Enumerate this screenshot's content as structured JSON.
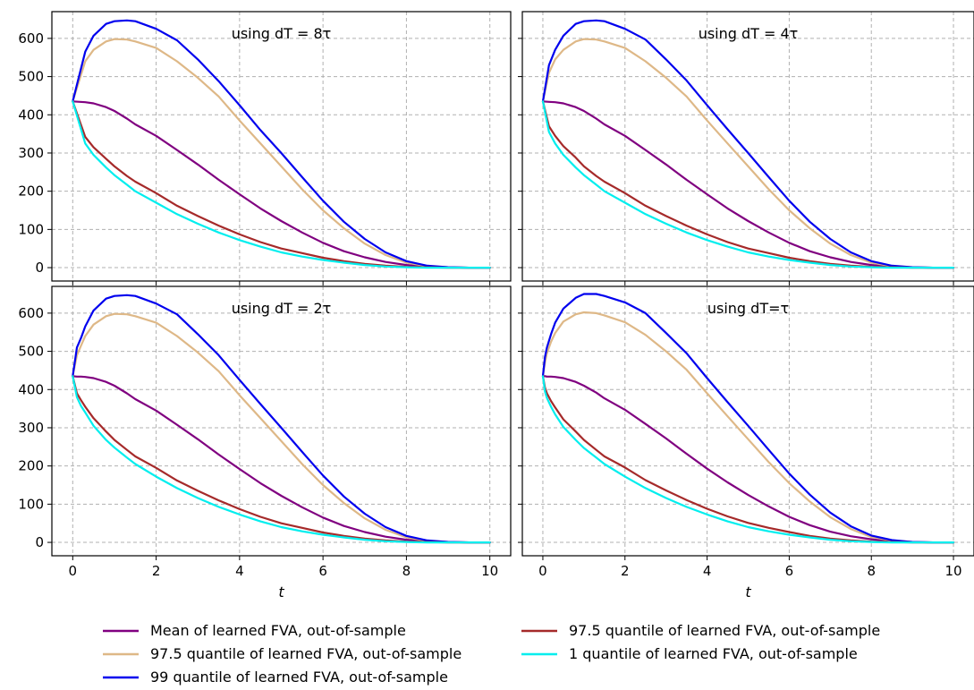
{
  "chart_data": {
    "type": "line",
    "layout": "2x2 grid, shared axes",
    "xlabel": "t",
    "xlim": [
      -0.5,
      10.5
    ],
    "ylim": [
      -35,
      670
    ],
    "x_ticks": [
      0,
      2,
      4,
      6,
      8,
      10
    ],
    "y_ticks": [
      0,
      100,
      200,
      300,
      400,
      500,
      600
    ],
    "grid": true,
    "legend_placement": "bottom-center, two columns",
    "series_styles": [
      {
        "key": "mean",
        "name": "Mean of learned FVA, out-of-sample",
        "color": "#800080"
      },
      {
        "key": "q975",
        "name": "97.5 quantile of learned FVA, out-of-sample",
        "color": "#deb887"
      },
      {
        "key": "q99",
        "name": "99 quantile of learned FVA, out-of-sample",
        "color": "#0000ee"
      },
      {
        "key": "q975b",
        "name": "97.5 quantile of learned FVA, out-of-sample",
        "color": "#a52a2a"
      },
      {
        "key": "q1",
        "name": "1 quantile of learned FVA, out-of-sample",
        "color": "#00eeee"
      }
    ],
    "legend_order": [
      "mean",
      "q975b",
      "q975",
      "q1",
      "q99"
    ],
    "panels": [
      {
        "title": "using dT = 8τ",
        "x": [
          0,
          0.3,
          0.5,
          0.8,
          1.0,
          1.3,
          1.5,
          2.0,
          2.5,
          3.0,
          3.5,
          4.0,
          4.5,
          5.0,
          5.5,
          6.0,
          6.5,
          7.0,
          7.5,
          8.0,
          8.5,
          9.0,
          9.5,
          10.0
        ],
        "series": [
          {
            "key": "mean",
            "values": [
              435,
              433,
              430,
              420,
              410,
              390,
              375,
              345,
              308,
              270,
              230,
              192,
              155,
              122,
              92,
              65,
              43,
              27,
              15,
              7,
              3,
              1,
              0,
              0
            ]
          },
          {
            "key": "q975",
            "values": [
              435,
              540,
              570,
              592,
              598,
              597,
              592,
              575,
              540,
              497,
              448,
              385,
              325,
              265,
              205,
              150,
              103,
              63,
              33,
              13,
              4,
              1,
              0,
              0
            ]
          },
          {
            "key": "q99",
            "values": [
              435,
              565,
              607,
              638,
              645,
              647,
              645,
              625,
              595,
              545,
              488,
              425,
              360,
              300,
              237,
              175,
              120,
              75,
              40,
              17,
              5,
              1,
              0,
              0
            ]
          },
          {
            "key": "q975b",
            "values": [
              435,
              342,
              315,
              285,
              265,
              240,
              225,
              195,
              162,
              135,
              110,
              87,
              67,
              50,
              38,
              26,
              17,
              10,
              5,
              2,
              1,
              0,
              0,
              0
            ]
          },
          {
            "key": "q1",
            "values": [
              435,
              325,
              295,
              262,
              242,
              217,
              200,
              170,
              140,
              115,
              92,
              72,
              55,
              40,
              29,
              20,
              13,
              7,
              3,
              1,
              0,
              0,
              0,
              0
            ]
          }
        ]
      },
      {
        "title": "using dT = 4τ",
        "x": [
          0,
          0.15,
          0.3,
          0.5,
          0.8,
          1.0,
          1.3,
          1.5,
          2.0,
          2.5,
          3.0,
          3.5,
          4.0,
          4.5,
          5.0,
          5.5,
          6.0,
          6.5,
          7.0,
          7.5,
          8.0,
          8.5,
          9.0,
          9.5,
          10.0
        ],
        "series": [
          {
            "key": "mean",
            "values": [
              435,
              434,
              433,
              430,
              420,
              410,
              390,
              375,
              345,
              308,
              270,
              230,
              192,
              155,
              122,
              92,
              65,
              43,
              27,
              15,
              7,
              3,
              1,
              0,
              0
            ]
          },
          {
            "key": "q975",
            "values": [
              435,
              510,
              545,
              570,
              592,
              598,
              597,
              592,
              575,
              540,
              497,
              448,
              385,
              325,
              265,
              205,
              150,
              103,
              63,
              33,
              13,
              4,
              1,
              0,
              0
            ]
          },
          {
            "key": "q99",
            "values": [
              435,
              530,
              570,
              607,
              638,
              645,
              647,
              645,
              625,
              597,
              545,
              490,
              425,
              362,
              300,
              237,
              175,
              120,
              75,
              40,
              17,
              5,
              1,
              0,
              0
            ]
          },
          {
            "key": "q975b",
            "values": [
              435,
              370,
              345,
              318,
              288,
              265,
              240,
              225,
              195,
              162,
              135,
              110,
              87,
              67,
              50,
              38,
              26,
              17,
              10,
              5,
              2,
              1,
              0,
              0,
              0
            ]
          },
          {
            "key": "q1",
            "values": [
              435,
              355,
              325,
              295,
              262,
              242,
              217,
              200,
              170,
              140,
              115,
              92,
              72,
              55,
              40,
              29,
              20,
              13,
              7,
              3,
              1,
              0,
              0,
              0,
              0
            ]
          }
        ]
      },
      {
        "title": "using dT = 2τ",
        "x": [
          0,
          0.1,
          0.2,
          0.3,
          0.5,
          0.8,
          1.0,
          1.3,
          1.5,
          2.0,
          2.5,
          3.0,
          3.5,
          4.0,
          4.5,
          5.0,
          5.5,
          6.0,
          6.5,
          7.0,
          7.5,
          8.0,
          8.5,
          9.0,
          9.5,
          10.0
        ],
        "series": [
          {
            "key": "mean",
            "values": [
              435,
              434,
              434,
              433,
              430,
              420,
              410,
              390,
              375,
              345,
              308,
              270,
              230,
              192,
              155,
              122,
              92,
              65,
              43,
              27,
              15,
              7,
              3,
              1,
              0,
              0
            ]
          },
          {
            "key": "q975",
            "values": [
              435,
              490,
              515,
              540,
              570,
              592,
              598,
              597,
              592,
              575,
              540,
              497,
              448,
              385,
              325,
              265,
              205,
              150,
              103,
              63,
              33,
              13,
              4,
              1,
              0,
              0
            ]
          },
          {
            "key": "q99",
            "values": [
              435,
              510,
              535,
              565,
              607,
              638,
              645,
              647,
              645,
              625,
              597,
              545,
              490,
              425,
              362,
              300,
              237,
              175,
              120,
              75,
              40,
              17,
              5,
              1,
              0,
              0
            ]
          },
          {
            "key": "q975b",
            "values": [
              435,
              390,
              372,
              355,
              325,
              290,
              268,
              242,
              225,
              195,
              162,
              135,
              110,
              87,
              67,
              50,
              38,
              26,
              17,
              10,
              5,
              2,
              1,
              0,
              0,
              0
            ]
          },
          {
            "key": "q1",
            "values": [
              435,
              380,
              357,
              340,
              305,
              268,
              248,
              222,
              205,
              172,
              142,
              116,
              93,
              73,
              55,
              40,
              29,
              20,
              13,
              7,
              3,
              1,
              0,
              0,
              0,
              0
            ]
          }
        ]
      },
      {
        "title": "using dT=τ",
        "x": [
          0,
          0.05,
          0.1,
          0.2,
          0.3,
          0.5,
          0.8,
          1.0,
          1.3,
          1.5,
          2.0,
          2.5,
          3.0,
          3.5,
          4.0,
          4.5,
          5.0,
          5.5,
          6.0,
          6.5,
          7.0,
          7.5,
          8.0,
          8.5,
          9.0,
          9.5,
          10.0
        ],
        "series": [
          {
            "key": "mean",
            "values": [
              435,
              435,
              434,
              434,
              433,
              430,
              420,
              410,
              392,
              377,
              347,
              310,
              272,
              232,
              193,
              157,
              124,
              94,
              67,
              45,
              28,
              16,
              8,
              3,
              1,
              0,
              0
            ]
          },
          {
            "key": "q975",
            "values": [
              435,
              470,
              495,
              525,
              548,
              578,
              597,
              602,
              600,
              594,
              576,
              543,
              500,
              452,
              390,
              330,
              270,
              210,
              155,
              107,
              66,
              35,
              14,
              5,
              1,
              0,
              0
            ]
          },
          {
            "key": "q99",
            "values": [
              435,
              485,
              510,
              545,
              575,
              612,
              640,
              650,
              650,
              645,
              628,
              600,
              548,
              495,
              430,
              367,
              305,
              242,
              180,
              125,
              78,
              42,
              18,
              6,
              1,
              0,
              0
            ]
          },
          {
            "key": "q975b",
            "values": [
              435,
              405,
              390,
              370,
              353,
              322,
              290,
              268,
              242,
              225,
              196,
              163,
              136,
              111,
              88,
              68,
              51,
              38,
              27,
              17,
              10,
              5,
              2,
              1,
              0,
              0,
              0
            ]
          },
          {
            "key": "q1",
            "values": [
              435,
              395,
              378,
              355,
              335,
              302,
              268,
              247,
              222,
              205,
              172,
              142,
              116,
              93,
              73,
              55,
              40,
              29,
              20,
              13,
              7,
              3,
              1,
              0,
              0,
              0,
              0
            ]
          }
        ]
      }
    ]
  }
}
